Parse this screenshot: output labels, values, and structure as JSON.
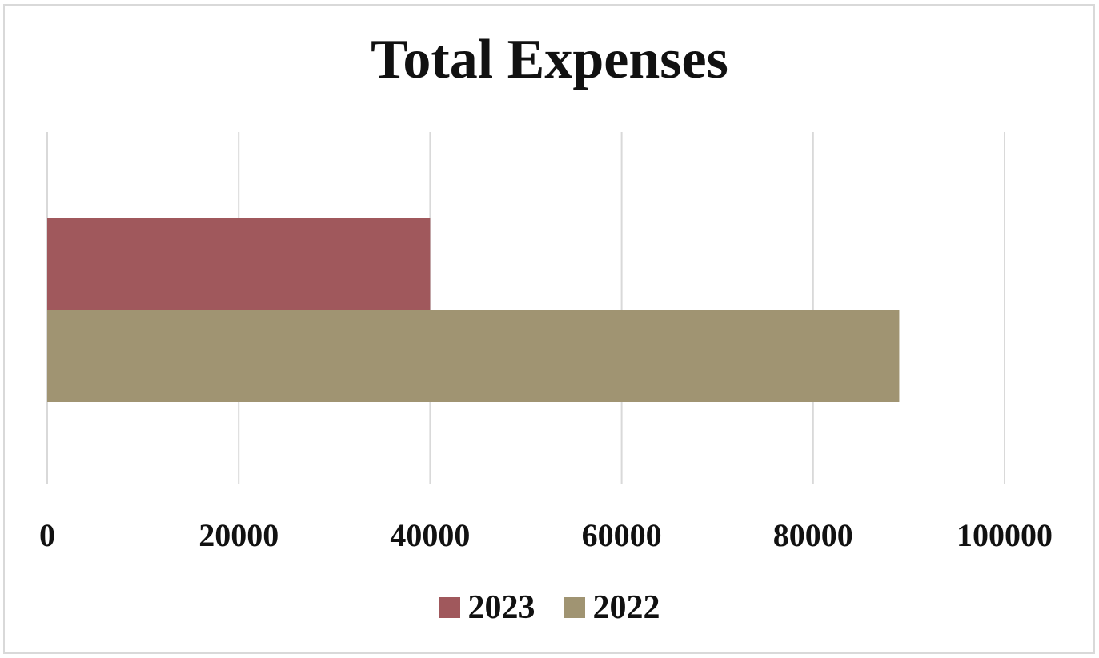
{
  "chart_data": {
    "type": "bar",
    "orientation": "horizontal",
    "title": "Total Expenses",
    "xlabel": "",
    "ylabel": "",
    "categories": [
      ""
    ],
    "series": [
      {
        "name": "2023",
        "values": [
          40000
        ],
        "color": "#a0585c"
      },
      {
        "name": "2022",
        "values": [
          89000
        ],
        "color": "#a09472"
      }
    ],
    "xlim": [
      0,
      100000
    ],
    "x_ticks": [
      "0",
      "20000",
      "40000",
      "60000",
      "80000",
      "100000"
    ],
    "grid": "vertical",
    "legend_position": "bottom",
    "gridline_color": "#d9d9d9"
  }
}
